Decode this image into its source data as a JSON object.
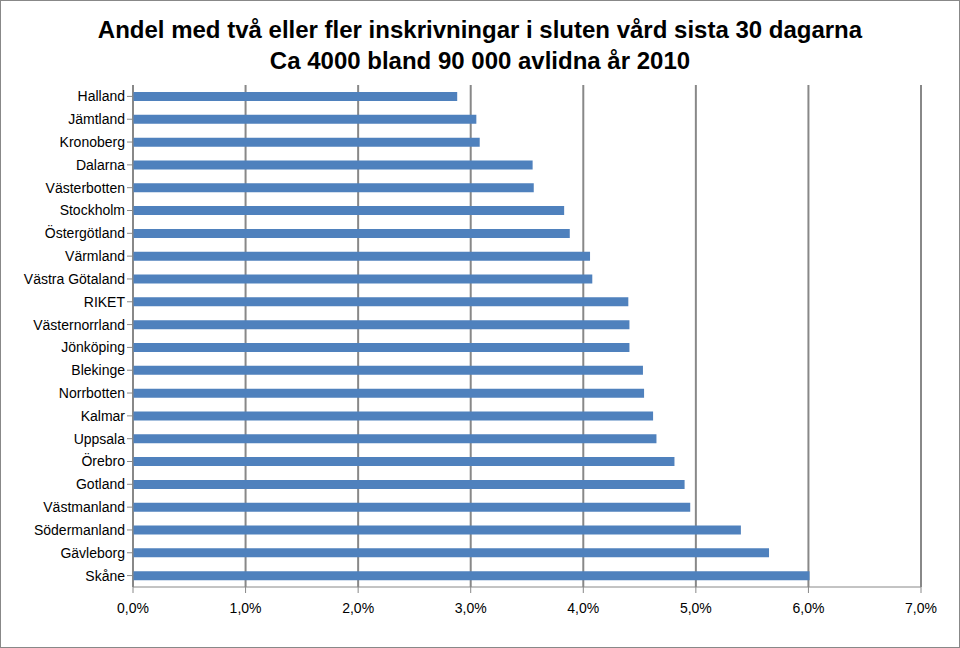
{
  "chart_data": {
    "type": "bar",
    "title": "Andel med två eller fler inskrivningar i sluten vård sista 30 dagarna",
    "subtitle": "Ca 4000 bland 90 000 avlidna år 2010",
    "orientation": "horizontal",
    "categories": [
      "Halland",
      "Jämtland",
      "Kronoberg",
      "Dalarna",
      "Västerbotten",
      "Stockholm",
      "Östergötland",
      "Värmland",
      "Västra Götaland",
      "RIKET",
      "Västernorrland",
      "Jönköping",
      "Blekinge",
      "Norrbotten",
      "Kalmar",
      "Uppsala",
      "Örebro",
      "Gotland",
      "Västmanland",
      "Södermanland",
      "Gävleborg",
      "Skåne"
    ],
    "values": [
      2.88,
      3.05,
      3.08,
      3.55,
      3.56,
      3.83,
      3.88,
      4.06,
      4.08,
      4.4,
      4.41,
      4.41,
      4.53,
      4.54,
      4.62,
      4.65,
      4.81,
      4.9,
      4.95,
      5.4,
      5.65,
      6.01
    ],
    "color": "#4f81bd",
    "xlim": [
      0,
      7
    ],
    "xticks": [
      {
        "value": 0,
        "label": "0,0%"
      },
      {
        "value": 1,
        "label": "1,0%"
      },
      {
        "value": 2,
        "label": "2,0%"
      },
      {
        "value": 3,
        "label": "3,0%"
      },
      {
        "value": 4,
        "label": "4,0%"
      },
      {
        "value": 5,
        "label": "5,0%"
      },
      {
        "value": 6,
        "label": "6,0%"
      },
      {
        "value": 7,
        "label": "7,0%"
      }
    ],
    "grid": true
  }
}
